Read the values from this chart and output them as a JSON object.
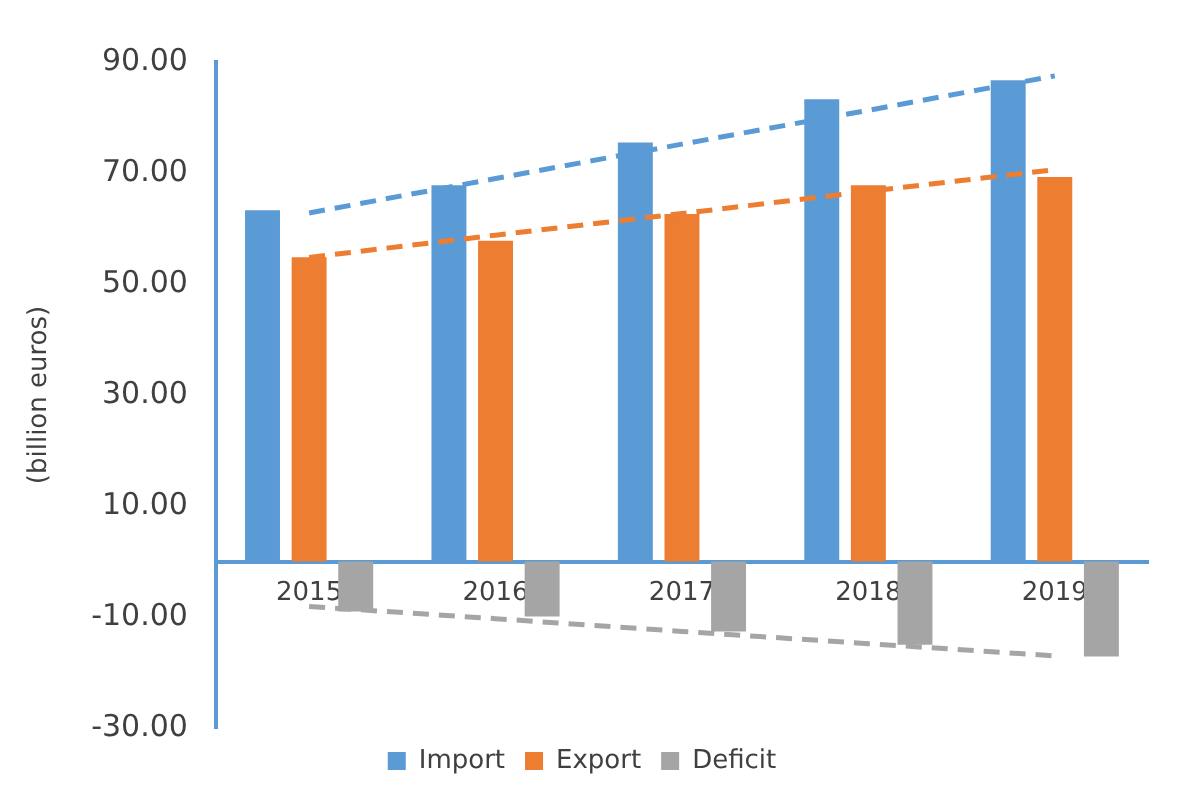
{
  "chart_data": {
    "type": "bar",
    "ylabel": "(billion euros)",
    "categories": [
      "2015",
      "2016",
      "2017",
      "2018",
      "2019"
    ],
    "series": [
      {
        "name": "Import",
        "color": "#5b9bd5",
        "values": [
          63.3,
          67.8,
          75.5,
          83.3,
          86.7
        ]
      },
      {
        "name": "Export",
        "color": "#ed7d31",
        "values": [
          54.8,
          57.8,
          62.6,
          67.8,
          69.3
        ]
      },
      {
        "name": "Deficit",
        "color": "#a5a5a5",
        "values": [
          -9.0,
          -9.9,
          -12.6,
          -15.0,
          -17.1
        ]
      },
      {
        "type": "line",
        "color": "#5b9bd5",
        "line_style": "dashed",
        "values": [
          62.8,
          69.0,
          75.2,
          81.3,
          87.5
        ]
      },
      {
        "type": "line",
        "color": "#ed7d31",
        "line_style": "dashed",
        "values": [
          54.8,
          58.8,
          62.7,
          66.7,
          70.6
        ]
      },
      {
        "type": "line",
        "color": "#a5a5a5",
        "line_style": "dashed",
        "values": [
          -8.1,
          -10.3,
          -12.6,
          -14.8,
          -17.0
        ]
      }
    ],
    "ylim": [
      -30,
      90
    ],
    "yticks": [
      {
        "value": 90,
        "label": "90.00"
      },
      {
        "value": 70,
        "label": "70.00"
      },
      {
        "value": 50,
        "label": "50.00"
      },
      {
        "value": 30,
        "label": "30.00"
      },
      {
        "value": 10,
        "label": "10.00"
      },
      {
        "value": -10,
        "label": "-10.00"
      },
      {
        "value": -30,
        "label": "-30.00"
      }
    ],
    "grid": false,
    "legend": "bottom",
    "marker": "none"
  }
}
